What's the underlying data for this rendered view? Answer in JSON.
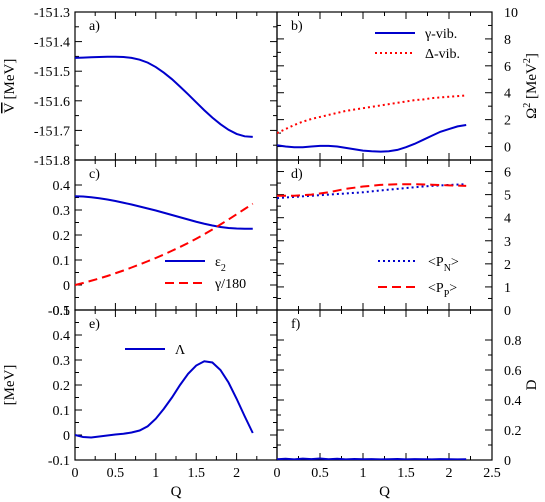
{
  "chart_data": [
    {
      "id": "a",
      "type": "line",
      "panel_label": "a)",
      "xlim": [
        0,
        2.5
      ],
      "ylim": [
        -151.8,
        -151.3
      ],
      "ylabel_parts": [
        "V",
        "[MeV]"
      ],
      "yticks": [
        "-151.8",
        "-151.7",
        "-151.6",
        "-151.5",
        "-151.4",
        "-151.3"
      ],
      "series": [
        {
          "color": "#0000cc",
          "dash": "solid",
          "x": [
            0,
            0.1,
            0.2,
            0.3,
            0.4,
            0.5,
            0.6,
            0.7,
            0.8,
            0.9,
            1.0,
            1.1,
            1.2,
            1.3,
            1.4,
            1.5,
            1.6,
            1.7,
            1.8,
            1.9,
            2.0,
            2.1,
            2.2
          ],
          "y": [
            -151.455,
            -151.454,
            -151.453,
            -151.452,
            -151.451,
            -151.451,
            -151.452,
            -151.455,
            -151.461,
            -151.471,
            -151.486,
            -151.505,
            -151.527,
            -151.552,
            -151.578,
            -151.605,
            -151.632,
            -151.657,
            -151.679,
            -151.698,
            -151.712,
            -151.72,
            -151.722
          ]
        }
      ]
    },
    {
      "id": "b",
      "type": "line",
      "panel_label": "b)",
      "xlim": [
        0,
        2.5
      ],
      "ylim": [
        -1,
        10
      ],
      "ylabel_right_parts": [
        "Ω",
        "2",
        " [MeV",
        "2",
        "]"
      ],
      "yticks_right": [
        "0",
        "2",
        "4",
        "6",
        "8",
        "10"
      ],
      "series": [
        {
          "name": "γ-vib.",
          "color": "#0000cc",
          "dash": "solid",
          "x": [
            0,
            0.1,
            0.2,
            0.3,
            0.4,
            0.5,
            0.6,
            0.7,
            0.8,
            0.9,
            1.0,
            1.1,
            1.2,
            1.3,
            1.4,
            1.5,
            1.6,
            1.7,
            1.8,
            1.9,
            2.0,
            2.1,
            2.2
          ],
          "y": [
            0.1,
            0.0,
            -0.05,
            -0.05,
            0.0,
            0.05,
            0.05,
            0.0,
            -0.1,
            -0.2,
            -0.3,
            -0.35,
            -0.38,
            -0.35,
            -0.25,
            -0.05,
            0.2,
            0.5,
            0.8,
            1.1,
            1.3,
            1.5,
            1.6
          ]
        },
        {
          "name": "Δ-vib.",
          "color": "#ff0000",
          "dash": "dot",
          "x": [
            0,
            0.1,
            0.2,
            0.3,
            0.4,
            0.5,
            0.6,
            0.7,
            0.8,
            0.9,
            1.0,
            1.1,
            1.2,
            1.3,
            1.4,
            1.5,
            1.6,
            1.7,
            1.8,
            1.9,
            2.0,
            2.1,
            2.2
          ],
          "y": [
            1.0,
            1.3,
            1.6,
            1.85,
            2.05,
            2.2,
            2.35,
            2.5,
            2.65,
            2.75,
            2.85,
            2.95,
            3.05,
            3.15,
            3.25,
            3.35,
            3.45,
            3.5,
            3.6,
            3.65,
            3.7,
            3.75,
            3.8
          ]
        }
      ]
    },
    {
      "id": "c",
      "type": "line",
      "panel_label": "c)",
      "xlim": [
        0,
        2.5
      ],
      "ylim": [
        -0.1,
        0.5
      ],
      "yticks": [
        "-0.1",
        "0",
        "0.1",
        "0.2",
        "0.3",
        "0.4"
      ],
      "series": [
        {
          "name_parts": [
            "ε",
            "2"
          ],
          "color": "#0000cc",
          "dash": "solid",
          "x": [
            0,
            0.1,
            0.2,
            0.3,
            0.4,
            0.5,
            0.6,
            0.7,
            0.8,
            0.9,
            1.0,
            1.1,
            1.2,
            1.3,
            1.4,
            1.5,
            1.6,
            1.7,
            1.8,
            1.9,
            2.0,
            2.1,
            2.2
          ],
          "y": [
            0.355,
            0.354,
            0.351,
            0.347,
            0.342,
            0.336,
            0.329,
            0.322,
            0.314,
            0.306,
            0.298,
            0.289,
            0.28,
            0.271,
            0.262,
            0.253,
            0.245,
            0.238,
            0.232,
            0.228,
            0.226,
            0.225,
            0.225
          ]
        },
        {
          "name": "γ/180",
          "color": "#ff0000",
          "dash": "dash",
          "x": [
            0,
            0.1,
            0.2,
            0.3,
            0.4,
            0.5,
            0.6,
            0.7,
            0.8,
            0.9,
            1.0,
            1.1,
            1.2,
            1.3,
            1.4,
            1.5,
            1.6,
            1.7,
            1.8,
            1.9,
            2.0,
            2.1,
            2.2
          ],
          "y": [
            0.0,
            0.008,
            0.017,
            0.026,
            0.036,
            0.047,
            0.058,
            0.07,
            0.082,
            0.095,
            0.108,
            0.122,
            0.137,
            0.152,
            0.168,
            0.185,
            0.203,
            0.222,
            0.242,
            0.262,
            0.283,
            0.304,
            0.325
          ]
        }
      ]
    },
    {
      "id": "d",
      "type": "line",
      "panel_label": "d)",
      "xlim": [
        0,
        2.5
      ],
      "ylim": [
        0,
        6.5
      ],
      "yticks_right": [
        "0",
        "1",
        "2",
        "3",
        "4",
        "5",
        "6"
      ],
      "series": [
        {
          "name_parts": [
            "<P",
            "N",
            ">"
          ],
          "color": "#0000cc",
          "dash": "dot",
          "x": [
            0,
            0.2,
            0.4,
            0.6,
            0.8,
            1.0,
            1.2,
            1.4,
            1.6,
            1.8,
            2.0,
            2.2
          ],
          "y": [
            4.85,
            4.9,
            4.95,
            5.0,
            5.05,
            5.1,
            5.18,
            5.25,
            5.32,
            5.38,
            5.42,
            5.45
          ]
        },
        {
          "name_parts": [
            "<P",
            "P",
            ">"
          ],
          "color": "#ff0000",
          "dash": "dash",
          "x": [
            0,
            0.2,
            0.4,
            0.6,
            0.8,
            1.0,
            1.2,
            1.4,
            1.6,
            1.8,
            2.0,
            2.2
          ],
          "y": [
            4.95,
            4.95,
            5.0,
            5.1,
            5.25,
            5.35,
            5.42,
            5.45,
            5.45,
            5.43,
            5.4,
            5.38
          ]
        }
      ]
    },
    {
      "id": "e",
      "type": "line",
      "panel_label": "e)",
      "xlim": [
        0,
        2.5
      ],
      "ylim": [
        -0.1,
        0.5
      ],
      "ylabel": "[MeV]",
      "yticks": [
        "-0.1",
        "0",
        "0.1",
        "0.2",
        "0.3",
        "0.4",
        "0.5"
      ],
      "xticks": [
        "0",
        "0.5",
        "1",
        "1.5",
        "2"
      ],
      "xlabel": "Q",
      "series": [
        {
          "name": "Λ",
          "color": "#0000cc",
          "dash": "solid",
          "x": [
            0,
            0.1,
            0.2,
            0.3,
            0.4,
            0.5,
            0.6,
            0.7,
            0.8,
            0.9,
            1.0,
            1.1,
            1.2,
            1.3,
            1.4,
            1.5,
            1.6,
            1.7,
            1.8,
            1.9,
            2.0,
            2.1,
            2.2
          ],
          "y": [
            0.0,
            -0.008,
            -0.01,
            -0.006,
            -0.002,
            0.002,
            0.005,
            0.01,
            0.018,
            0.035,
            0.065,
            0.105,
            0.15,
            0.2,
            0.245,
            0.278,
            0.295,
            0.29,
            0.26,
            0.21,
            0.145,
            0.075,
            0.008
          ]
        }
      ]
    },
    {
      "id": "f",
      "type": "line",
      "panel_label": "f)",
      "xlim": [
        0,
        2.5
      ],
      "ylim": [
        0,
        1.0
      ],
      "ylabel_right": "D",
      "yticks_right": [
        "0",
        "0.2",
        "0.4",
        "0.6",
        "0.8"
      ],
      "xticks": [
        "0",
        "0.5",
        "1",
        "1.5",
        "2",
        "2.5"
      ],
      "xlabel": "Q",
      "series": [
        {
          "color": "#0000cc",
          "dash": "solid",
          "x": [
            0,
            0.1,
            0.2,
            0.3,
            0.4,
            0.5,
            0.6,
            0.7,
            0.8,
            0.9,
            1.0,
            1.1,
            1.2,
            1.3,
            1.4,
            1.5,
            1.6,
            1.7,
            1.8,
            1.9,
            2.0,
            2.1,
            2.2
          ],
          "y": [
            0.005,
            0.008,
            0.004,
            0.009,
            0.006,
            0.01,
            0.005,
            0.008,
            0.004,
            0.007,
            0.005,
            0.006,
            0.004,
            0.005,
            0.007,
            0.004,
            0.006,
            0.005,
            0.004,
            0.006,
            0.005,
            0.004,
            0.005
          ]
        }
      ]
    }
  ]
}
